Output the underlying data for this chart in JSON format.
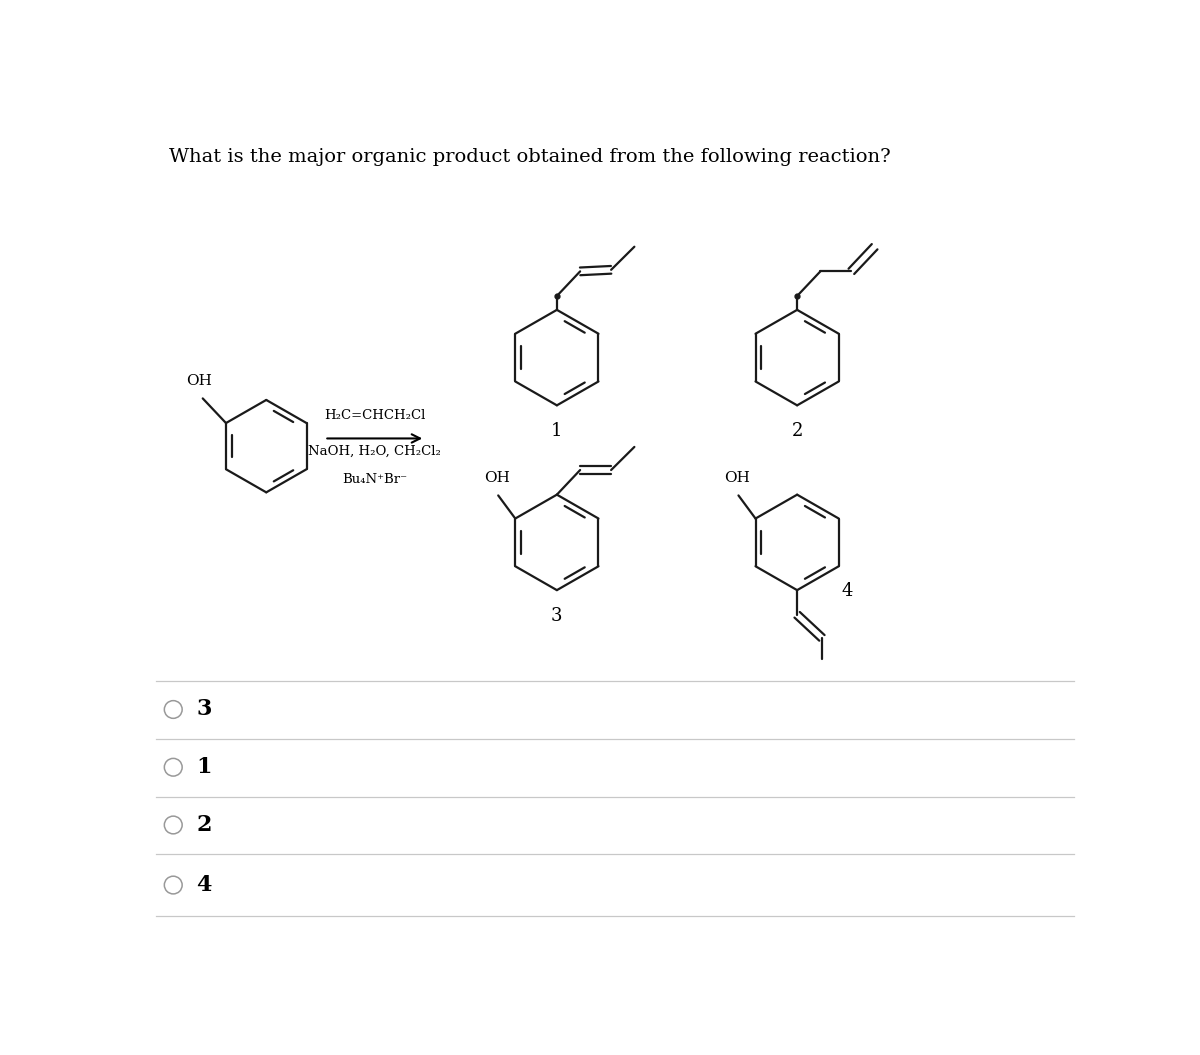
{
  "title": "What is the major organic product obtained from the following reaction?",
  "title_fontsize": 14,
  "bg_color": "#ffffff",
  "answer_options": [
    "3",
    "1",
    "2",
    "4"
  ],
  "line_color": "#1a1a1a",
  "line_width": 1.6,
  "reaction_arrow_text1": "H₂C=CHCH₂Cl",
  "reaction_arrow_text2": "NaOH, H₂O, CH₂Cl₂",
  "reaction_arrow_text3": "Bu₄N⁺Br⁻"
}
